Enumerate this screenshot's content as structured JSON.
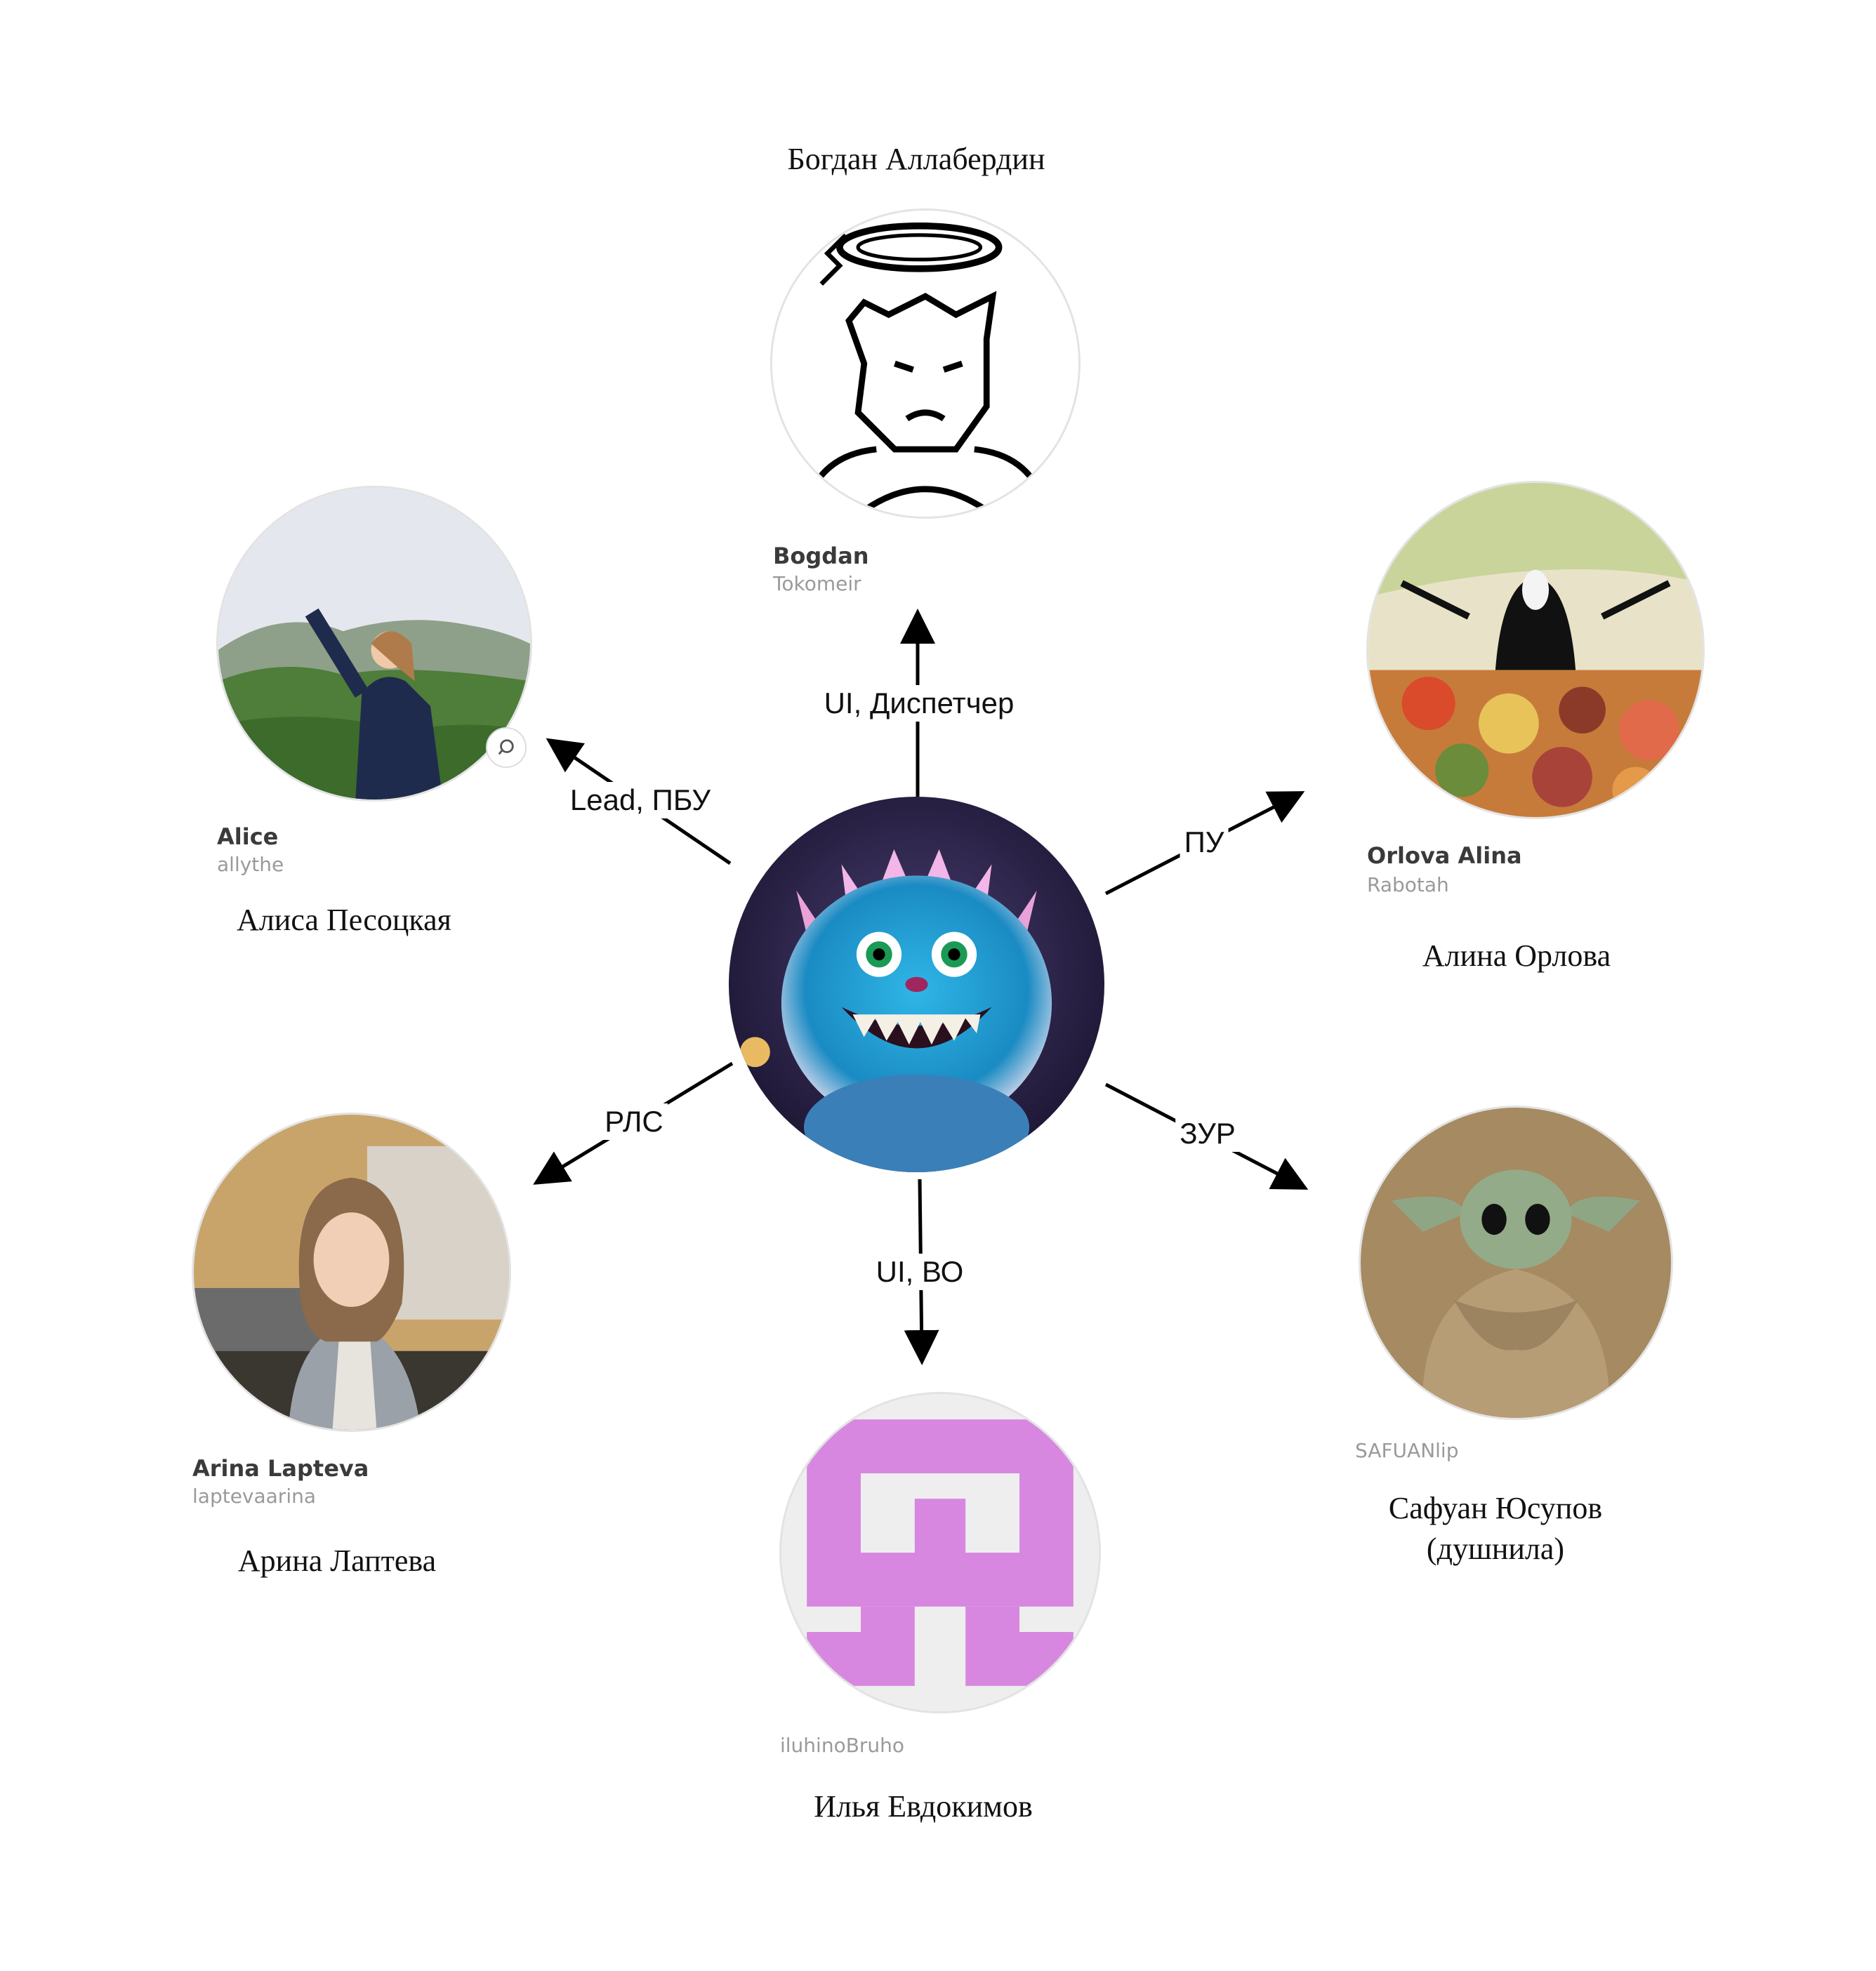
{
  "center": {
    "avatar_icon": "blue-fluffy-monster-avatar"
  },
  "people": {
    "bogdan": {
      "ru_name": "Богдан Аллабердин",
      "nick": "Bogdan",
      "login": "Tokomeir",
      "avatar_icon": "sketch-halo-man-avatar"
    },
    "alice": {
      "ru_name": "Алиса Песоцкая",
      "nick": "Alice",
      "login": "allythe",
      "avatar_icon": "mountain-photo-avatar"
    },
    "alina": {
      "ru_name": "Алина Орлова",
      "nick": "Orlova Alina",
      "login": "Rabotah",
      "avatar_icon": "no-face-feast-avatar"
    },
    "arina": {
      "ru_name": "Арина Лаптева",
      "nick": "Arina Lapteva",
      "login": "laptevaarina",
      "avatar_icon": "portrait-photo-avatar"
    },
    "ilya": {
      "ru_name": "Илья Евдокимов",
      "login": "iluhinoBruho",
      "avatar_icon": "pink-identicon-avatar"
    },
    "safuan": {
      "ru_name_line1": "Сафуан Юсупов",
      "ru_name_line2": "(душнила)",
      "login": "SAFUANlip",
      "avatar_icon": "baby-yoda-avatar"
    }
  },
  "edges": {
    "bogdan": "UI, Диспетчер",
    "alice": "Lead, ПБУ",
    "alina": "ПУ",
    "arina": "РЛС",
    "ilya": "UI, ВО",
    "safuan": "ЗУР"
  },
  "colors": {
    "identicon_pink": "#d887e0",
    "identicon_bg": "#eeeeee",
    "arrow": "#000000"
  }
}
